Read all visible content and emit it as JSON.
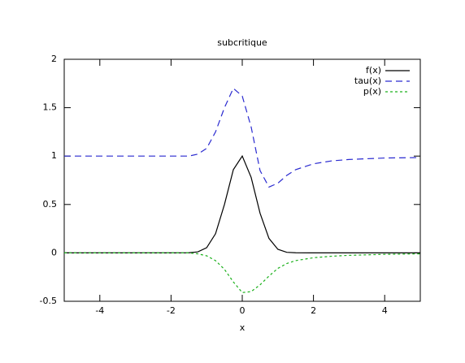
{
  "chart_data": {
    "type": "line",
    "title": "subcritique",
    "x_label": "x",
    "x": [
      -5,
      -4,
      -3,
      -2,
      -1.5,
      -1.25,
      -1,
      -0.75,
      -0.5,
      -0.25,
      0,
      0.25,
      0.5,
      0.75,
      1,
      1.25,
      1.5,
      2,
      2.5,
      3,
      4,
      5
    ],
    "series": [
      {
        "name": "f(x)",
        "color": "#000000",
        "dash": "solid",
        "values": [
          0,
          0,
          0,
          0,
          0.001,
          0.01,
          0.053,
          0.198,
          0.5,
          0.86,
          1.0,
          0.78,
          0.41,
          0.15,
          0.037,
          0.006,
          0.001,
          0,
          0,
          0,
          0,
          0
        ]
      },
      {
        "name": "tau(x)",
        "color": "#2a2ad0",
        "dash": "dashed",
        "values": [
          1,
          1,
          1,
          1,
          1,
          1.02,
          1.08,
          1.25,
          1.5,
          1.7,
          1.62,
          1.3,
          0.85,
          0.68,
          0.72,
          0.8,
          0.86,
          0.92,
          0.95,
          0.965,
          0.98,
          0.985
        ]
      },
      {
        "name": "p(x)",
        "color": "#1ab01a",
        "dash": "dotted",
        "values": [
          0,
          0,
          0,
          0,
          0,
          -0.01,
          -0.03,
          -0.08,
          -0.17,
          -0.3,
          -0.41,
          -0.4,
          -0.33,
          -0.24,
          -0.16,
          -0.11,
          -0.08,
          -0.05,
          -0.035,
          -0.025,
          -0.015,
          -0.01
        ]
      }
    ],
    "xlim": [
      -5,
      5
    ],
    "xticks": [
      -4,
      -2,
      0,
      2,
      4
    ],
    "ylim": [
      -0.5,
      2
    ],
    "yticks": [
      -0.5,
      0,
      0.5,
      1,
      1.5,
      2
    ],
    "legend": "top-right"
  }
}
